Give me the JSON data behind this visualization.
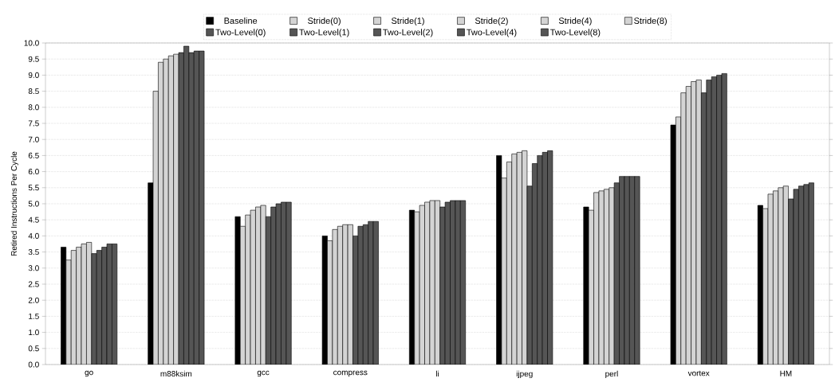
{
  "chart_data": {
    "type": "bar",
    "ylabel": "Retired Instructions Per Cycle",
    "categories": [
      "go",
      "m88ksim",
      "gcc",
      "compress",
      "li",
      "ijpeg",
      "perl",
      "vortex",
      "HM"
    ],
    "series": [
      {
        "name": "Baseline",
        "color": "#000000",
        "values": [
          3.65,
          5.65,
          4.6,
          4.0,
          4.8,
          6.5,
          4.9,
          7.45,
          4.95
        ]
      },
      {
        "name": "Stride(0)",
        "color": "#d4d4d4",
        "values": [
          3.25,
          8.5,
          4.3,
          3.85,
          4.75,
          5.8,
          4.8,
          7.7,
          4.85
        ]
      },
      {
        "name": "Stride(1)",
        "color": "#d4d4d4",
        "values": [
          3.55,
          9.4,
          4.65,
          4.2,
          4.95,
          6.3,
          5.35,
          8.45,
          5.3
        ]
      },
      {
        "name": "Stride(2)",
        "color": "#d4d4d4",
        "values": [
          3.65,
          9.5,
          4.8,
          4.3,
          5.05,
          6.55,
          5.4,
          8.65,
          5.4
        ]
      },
      {
        "name": "Stride(4)",
        "color": "#d4d4d4",
        "values": [
          3.75,
          9.6,
          4.9,
          4.35,
          5.1,
          6.6,
          5.45,
          8.8,
          5.5
        ]
      },
      {
        "name": "Stride(8)",
        "color": "#d4d4d4",
        "values": [
          3.8,
          9.65,
          4.95,
          4.35,
          5.1,
          6.65,
          5.5,
          8.85,
          5.55
        ]
      },
      {
        "name": "Two-Level(0)",
        "color": "#555555",
        "values": [
          3.45,
          9.7,
          4.6,
          4.0,
          4.9,
          5.55,
          5.65,
          8.45,
          5.15
        ]
      },
      {
        "name": "Two-Level(1)",
        "color": "#555555",
        "values": [
          3.55,
          9.9,
          4.9,
          4.3,
          5.05,
          6.25,
          5.85,
          8.85,
          5.45
        ]
      },
      {
        "name": "Two-Level(2)",
        "color": "#555555",
        "values": [
          3.65,
          9.7,
          5.0,
          4.35,
          5.1,
          6.5,
          5.85,
          8.95,
          5.55
        ]
      },
      {
        "name": "Two-Level(4)",
        "color": "#555555",
        "values": [
          3.75,
          9.75,
          5.05,
          4.45,
          5.1,
          6.6,
          5.85,
          9.0,
          5.6
        ]
      },
      {
        "name": "Two-Level(8)",
        "color": "#555555",
        "values": [
          3.75,
          9.75,
          5.05,
          4.45,
          5.1,
          6.65,
          5.85,
          9.05,
          5.65
        ]
      }
    ],
    "ylim": [
      0,
      10
    ],
    "yticks": [
      {
        "value": 0,
        "label": "0.0"
      },
      {
        "value": 0.5,
        "label": "0.5"
      },
      {
        "value": 1,
        "label": "1.0"
      },
      {
        "value": 1.5,
        "label": "1.5"
      },
      {
        "value": 2,
        "label": "2.0"
      },
      {
        "value": 2.5,
        "label": "2.5"
      },
      {
        "value": 3,
        "label": "3.0"
      },
      {
        "value": 3.5,
        "label": "3.5"
      },
      {
        "value": 4,
        "label": "4.0"
      },
      {
        "value": 4.5,
        "label": "4.5"
      },
      {
        "value": 5,
        "label": "5.0"
      },
      {
        "value": 5.5,
        "label": "5.5"
      },
      {
        "value": 6,
        "label": "6.0"
      },
      {
        "value": 6.5,
        "label": "6.5"
      },
      {
        "value": 7,
        "label": "7.0"
      },
      {
        "value": 7.5,
        "label": "7.5"
      },
      {
        "value": 8,
        "label": "8.0"
      },
      {
        "value": 8.5,
        "label": "8.5"
      },
      {
        "value": 9,
        "label": "9.0"
      },
      {
        "value": 9.5,
        "label": "9.5"
      },
      {
        "value": 10,
        "label": "10.0"
      }
    ],
    "grid": "y",
    "legend": "top"
  }
}
